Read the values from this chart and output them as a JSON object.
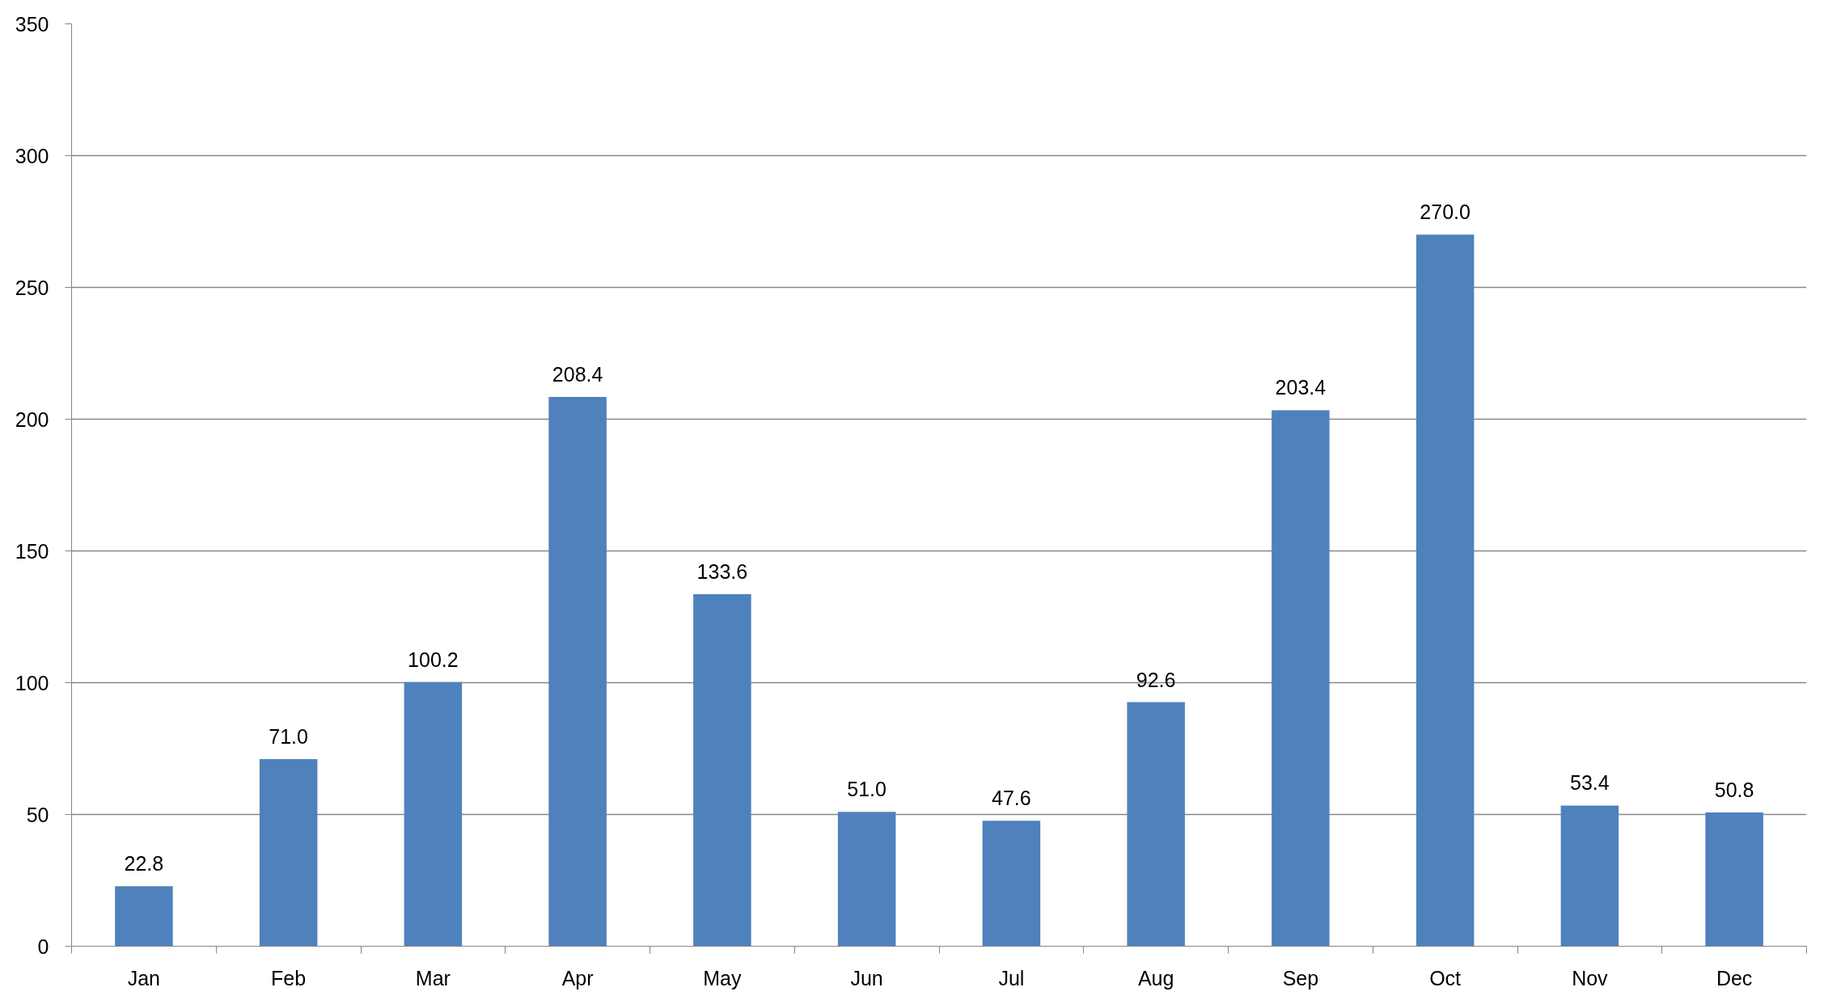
{
  "chart_data": {
    "type": "bar",
    "categories": [
      "Jan",
      "Feb",
      "Mar",
      "Apr",
      "May",
      "Jun",
      "Jul",
      "Aug",
      "Sep",
      "Oct",
      "Nov",
      "Dec"
    ],
    "values": [
      22.8,
      71.0,
      100.2,
      208.4,
      133.6,
      51.0,
      47.6,
      92.6,
      203.4,
      270.0,
      53.4,
      50.8
    ],
    "value_labels": [
      "22.8",
      "71.0",
      "100.2",
      "208.4",
      "133.6",
      "51.0",
      "47.6",
      "92.6",
      "203.4",
      "270.0",
      "53.4",
      "50.8"
    ],
    "color": "#4f81bd",
    "ylim": [
      0,
      350
    ],
    "yticks": [
      0,
      50,
      100,
      150,
      200,
      250,
      300,
      350
    ],
    "grid": "y"
  }
}
